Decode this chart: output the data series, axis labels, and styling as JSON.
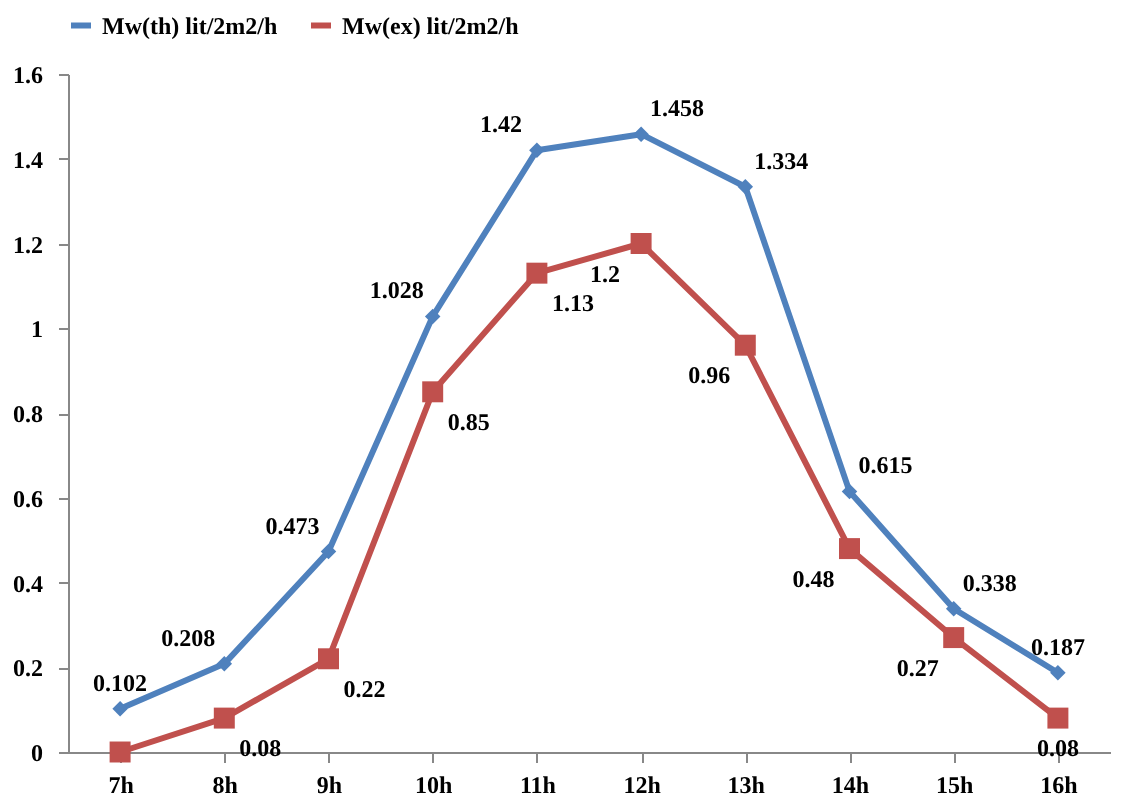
{
  "chart_data": {
    "type": "line",
    "categories": [
      "7h",
      "8h",
      "9h",
      "10h",
      "11h",
      "12h",
      "13h",
      "14h",
      "15h",
      "16h"
    ],
    "series": [
      {
        "name": "Mw(th) lit/2m2/h",
        "color": "#4f81bd",
        "marker": "diamond",
        "values": [
          0.102,
          0.208,
          0.473,
          1.028,
          1.42,
          1.458,
          1.334,
          0.615,
          0.338,
          0.187
        ],
        "value_labels": [
          "0.102",
          "0.208",
          "0.473",
          "1.028",
          "1.42",
          "1.458",
          "1.334",
          "0.615",
          "0.338",
          "0.187"
        ]
      },
      {
        "name": "Mw(ex) lit/2m2/h",
        "color": "#c0504d",
        "marker": "square",
        "values": [
          0,
          0.08,
          0.22,
          0.85,
          1.13,
          1.2,
          0.96,
          0.48,
          0.27,
          0.08
        ],
        "value_labels": [
          null,
          "0.08",
          "0.22",
          "0.85",
          "1.13",
          "1.2",
          "0.96",
          "0.48",
          "0.27",
          "0.08"
        ]
      }
    ],
    "ylim": [
      0,
      1.6
    ],
    "yticks": [
      0,
      0.2,
      0.4,
      0.6,
      0.8,
      1,
      1.2,
      1.4,
      1.6
    ],
    "grid": false,
    "legend": "top"
  }
}
